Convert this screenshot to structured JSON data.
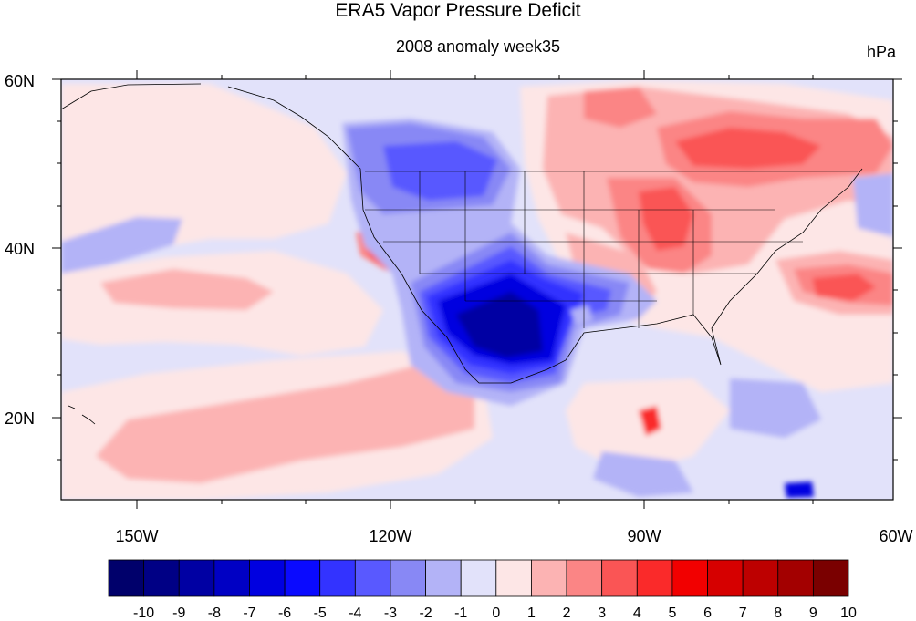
{
  "title": "ERA5 Vapor Pressure Deficit",
  "subtitle": "2008 anomaly week35",
  "units": "hPa",
  "lat_labels": [
    "60N",
    "40N",
    "20N"
  ],
  "lon_labels": [
    "150W",
    "120W",
    "90W",
    "60W"
  ],
  "colorbar": {
    "labels": [
      "-10",
      "-9",
      "-8",
      "-7",
      "-6",
      "-5",
      "-4",
      "-3",
      "-2",
      "-1",
      "0",
      "1",
      "2",
      "3",
      "4",
      "5",
      "6",
      "7",
      "8",
      "9",
      "10"
    ],
    "colors": [
      "#00006b",
      "#000085",
      "#0000a3",
      "#0000c4",
      "#0000e0",
      "#0a0aff",
      "#3333ff",
      "#5959ff",
      "#8888f5",
      "#b3b3f7",
      "#e2e2fa",
      "#fde6e6",
      "#fcb3b3",
      "#fb8585",
      "#fa5555",
      "#fa2a2a",
      "#f20000",
      "#d60000",
      "#bd0000",
      "#a30000",
      "#7a0000"
    ]
  },
  "map": {
    "lon_range": [
      -160,
      -60
    ],
    "lat_range": [
      10,
      60
    ],
    "background_color": "#e2e2fa"
  }
}
